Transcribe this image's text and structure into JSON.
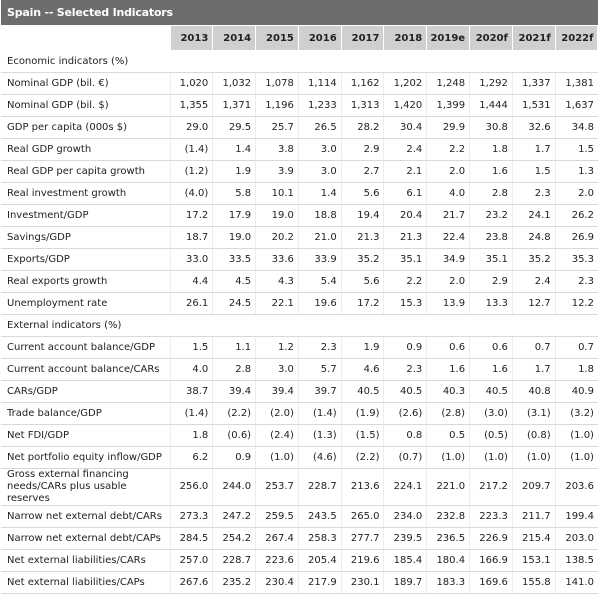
{
  "title": "Spain -- Selected Indicators",
  "years": [
    "2013",
    "2014",
    "2015",
    "2016",
    "2017",
    "2018",
    "2019e",
    "2020f",
    "2021f",
    "2022f"
  ],
  "rows": [
    {
      "label": "Economic indicators (%)",
      "section": true,
      "values": []
    },
    {
      "label": "Nominal GDP (bil. €)",
      "values": [
        "1,020",
        "1,032",
        "1,078",
        "1,114",
        "1,162",
        "1,202",
        "1,248",
        "1,292",
        "1,337",
        "1,381"
      ]
    },
    {
      "label": "Nominal GDP (bil. $)",
      "values": [
        "1,355",
        "1,371",
        "1,196",
        "1,233",
        "1,313",
        "1,420",
        "1,399",
        "1,444",
        "1,531",
        "1,637"
      ]
    },
    {
      "label": "GDP per capita (000s $)",
      "values": [
        "29.0",
        "29.5",
        "25.7",
        "26.5",
        "28.2",
        "30.4",
        "29.9",
        "30.8",
        "32.6",
        "34.8"
      ]
    },
    {
      "label": "Real GDP growth",
      "values": [
        "(1.4)",
        "1.4",
        "3.8",
        "3.0",
        "2.9",
        "2.4",
        "2.2",
        "1.8",
        "1.7",
        "1.5"
      ]
    },
    {
      "label": "Real GDP per capita growth",
      "values": [
        "(1.2)",
        "1.9",
        "3.9",
        "3.0",
        "2.7",
        "2.1",
        "2.0",
        "1.6",
        "1.5",
        "1.3"
      ]
    },
    {
      "label": "Real investment growth",
      "values": [
        "(4.0)",
        "5.8",
        "10.1",
        "1.4",
        "5.6",
        "6.1",
        "4.0",
        "2.8",
        "2.3",
        "2.0"
      ]
    },
    {
      "label": "Investment/GDP",
      "values": [
        "17.2",
        "17.9",
        "19.0",
        "18.8",
        "19.4",
        "20.4",
        "21.7",
        "23.2",
        "24.1",
        "26.2"
      ]
    },
    {
      "label": "Savings/GDP",
      "values": [
        "18.7",
        "19.0",
        "20.2",
        "21.0",
        "21.3",
        "21.3",
        "22.4",
        "23.8",
        "24.8",
        "26.9"
      ]
    },
    {
      "label": "Exports/GDP",
      "values": [
        "33.0",
        "33.5",
        "33.6",
        "33.9",
        "35.2",
        "35.1",
        "34.9",
        "35.1",
        "35.2",
        "35.3"
      ]
    },
    {
      "label": "Real exports growth",
      "values": [
        "4.4",
        "4.5",
        "4.3",
        "5.4",
        "5.6",
        "2.2",
        "2.0",
        "2.9",
        "2.4",
        "2.3"
      ]
    },
    {
      "label": "Unemployment rate",
      "values": [
        "26.1",
        "24.5",
        "22.1",
        "19.6",
        "17.2",
        "15.3",
        "13.9",
        "13.3",
        "12.7",
        "12.2"
      ]
    },
    {
      "label": "External indicators (%)",
      "section": true,
      "values": []
    },
    {
      "label": "Current account balance/GDP",
      "values": [
        "1.5",
        "1.1",
        "1.2",
        "2.3",
        "1.9",
        "0.9",
        "0.6",
        "0.6",
        "0.7",
        "0.7"
      ]
    },
    {
      "label": "Current account balance/CARs",
      "values": [
        "4.0",
        "2.8",
        "3.0",
        "5.7",
        "4.6",
        "2.3",
        "1.6",
        "1.6",
        "1.7",
        "1.8"
      ]
    },
    {
      "label": "CARs/GDP",
      "values": [
        "38.7",
        "39.4",
        "39.4",
        "39.7",
        "40.5",
        "40.5",
        "40.3",
        "40.5",
        "40.8",
        "40.9"
      ]
    },
    {
      "label": "Trade balance/GDP",
      "values": [
        "(1.4)",
        "(2.2)",
        "(2.0)",
        "(1.4)",
        "(1.9)",
        "(2.6)",
        "(2.8)",
        "(3.0)",
        "(3.1)",
        "(3.2)"
      ]
    },
    {
      "label": "Net FDI/GDP",
      "values": [
        "1.8",
        "(0.6)",
        "(2.4)",
        "(1.3)",
        "(1.5)",
        "0.8",
        "0.5",
        "(0.5)",
        "(0.8)",
        "(1.0)"
      ]
    },
    {
      "label": "Net portfolio equity inflow/GDP",
      "values": [
        "6.2",
        "0.9",
        "(1.0)",
        "(4.6)",
        "(2.2)",
        "(0.7)",
        "(1.0)",
        "(1.0)",
        "(1.0)",
        "(1.0)"
      ]
    },
    {
      "label": "Gross external financing needs/CARs plus usable reserves",
      "tall": true,
      "values": [
        "256.0",
        "244.0",
        "253.7",
        "228.7",
        "213.6",
        "224.1",
        "221.0",
        "217.2",
        "209.7",
        "203.6"
      ]
    },
    {
      "label": "Narrow net external debt/CARs",
      "values": [
        "273.3",
        "247.2",
        "259.5",
        "243.5",
        "265.0",
        "234.0",
        "232.8",
        "223.3",
        "211.7",
        "199.4"
      ]
    },
    {
      "label": "Narrow net external debt/CAPs",
      "values": [
        "284.5",
        "254.2",
        "267.4",
        "258.3",
        "277.7",
        "239.5",
        "236.5",
        "226.9",
        "215.4",
        "203.0"
      ]
    },
    {
      "label": "Net external liabilities/CARs",
      "values": [
        "257.0",
        "228.7",
        "223.6",
        "205.4",
        "219.6",
        "185.4",
        "180.4",
        "166.9",
        "153.1",
        "138.5"
      ]
    },
    {
      "label": "Net external liabilities/CAPs",
      "values": [
        "267.6",
        "235.2",
        "230.4",
        "217.9",
        "230.1",
        "189.7",
        "183.3",
        "169.6",
        "155.8",
        "141.0"
      ]
    }
  ]
}
